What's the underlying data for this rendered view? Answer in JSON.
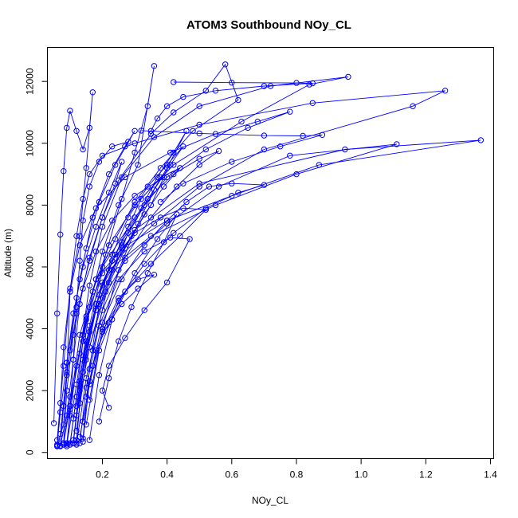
{
  "chart_data": {
    "type": "line",
    "title": "ATOM3 Southbound NOy_CL",
    "xlabel": "NOy_CL",
    "ylabel": "Altitude (m)",
    "xlim": [
      0.03,
      1.41
    ],
    "ylim": [
      -200,
      13100
    ],
    "xticks": [
      0.2,
      0.4,
      0.6,
      0.8,
      1.0,
      1.2,
      1.4
    ],
    "xtick_labels": [
      "0.2",
      "0.4",
      "0.6",
      "0.8",
      "1.0",
      "1.2",
      "1.4"
    ],
    "yticks": [
      0,
      2000,
      4000,
      6000,
      8000,
      10000,
      12000
    ],
    "ytick_labels": [
      "0",
      "2000",
      "4000",
      "6000",
      "8000",
      "10000",
      "12000"
    ],
    "grid": false,
    "legend": "none",
    "color": "#0000ff",
    "series": [
      {
        "x": [
          0.06,
          0.08,
          0.09,
          0.1,
          0.12,
          0.14,
          0.16,
          0.2,
          0.3,
          0.5,
          0.85,
          1.26,
          1.16,
          0.7,
          0.5,
          0.36,
          0.2,
          0.15,
          0.12,
          0.1,
          0.09
        ],
        "y": [
          250,
          900,
          2500,
          5200,
          7000,
          8200,
          9000,
          9600,
          10000,
          10600,
          11300,
          11700,
          11200,
          9800,
          8600,
          7400,
          5800,
          4400,
          2800,
          1200,
          300
        ]
      },
      {
        "x": [
          0.08,
          0.1,
          0.13,
          0.18,
          0.26,
          0.4,
          0.6,
          0.87,
          1.37,
          0.95,
          0.5,
          0.3,
          0.2,
          0.15,
          0.13,
          0.12
        ],
        "y": [
          300,
          1500,
          3800,
          5600,
          6600,
          7500,
          8300,
          9300,
          10100,
          9800,
          8700,
          7200,
          5400,
          3600,
          1600,
          300
        ]
      },
      {
        "x": [
          0.09,
          0.12,
          0.15,
          0.22,
          0.35,
          0.55,
          0.8,
          1.11,
          0.78,
          0.56,
          0.4,
          0.27,
          0.18,
          0.14,
          0.11
        ],
        "y": [
          250,
          2200,
          4300,
          5900,
          7000,
          8000,
          9000,
          9970,
          9600,
          8600,
          7400,
          6200,
          4600,
          2600,
          400
        ]
      },
      {
        "x": [
          0.07,
          0.09,
          0.11,
          0.13,
          0.16,
          0.2,
          0.25,
          0.35,
          0.42,
          0.52,
          0.58,
          0.62,
          0.48,
          0.38,
          0.3,
          0.24,
          0.18,
          0.14,
          0.1,
          0.08
        ],
        "y": [
          220,
          1200,
          3000,
          4800,
          6300,
          7600,
          8800,
          10300,
          11000,
          11700,
          12550,
          11400,
          10400,
          9200,
          8100,
          6900,
          5600,
          3800,
          1800,
          250
        ]
      },
      {
        "x": [
          0.1,
          0.12,
          0.14,
          0.17,
          0.22,
          0.3,
          0.42,
          0.63,
          0.84,
          0.96,
          0.72,
          0.5,
          0.36,
          0.26,
          0.2,
          0.16,
          0.13
        ],
        "y": [
          300,
          1800,
          3600,
          5200,
          6700,
          8000,
          9300,
          10700,
          11900,
          12150,
          11850,
          11200,
          10200,
          8900,
          7300,
          5400,
          3200
        ]
      },
      {
        "x": [
          0.12,
          0.14,
          0.18,
          0.23,
          0.3,
          0.38,
          0.45,
          0.52,
          0.44,
          0.35,
          0.27,
          0.21,
          0.17,
          0.14
        ],
        "y": [
          400,
          2600,
          4800,
          6200,
          7100,
          7600,
          7900,
          7850,
          7000,
          6100,
          5200,
          4100,
          2800,
          1000
        ]
      },
      {
        "x": [
          0.05,
          0.06,
          0.07,
          0.08,
          0.09,
          0.1,
          0.12,
          0.14,
          0.16,
          0.17,
          0.15,
          0.13,
          0.1,
          0.08,
          0.06
        ],
        "y": [
          950,
          4500,
          7050,
          9100,
          10500,
          11050,
          10400,
          9800,
          10500,
          11650,
          9200,
          7000,
          5300,
          2800,
          400
        ]
      },
      {
        "x": [
          0.13,
          0.15,
          0.19,
          0.25,
          0.33,
          0.41,
          0.47,
          0.4,
          0.33,
          0.27,
          0.22,
          0.2,
          0.22
        ],
        "y": [
          300,
          2100,
          4100,
          5600,
          6500,
          6950,
          6900,
          5500,
          4600,
          3700,
          2800,
          2000,
          1450
        ]
      },
      {
        "x": [
          0.06,
          0.07,
          0.08,
          0.1,
          0.13,
          0.18,
          0.27,
          0.41,
          0.55,
          0.68,
          0.78,
          0.65,
          0.52,
          0.4,
          0.3,
          0.2,
          0.14,
          0.1
        ],
        "y": [
          200,
          1600,
          3400,
          5200,
          6700,
          7900,
          8900,
          9700,
          10300,
          10700,
          11020,
          10500,
          9800,
          8900,
          7600,
          6000,
          3800,
          1500
        ]
      },
      {
        "x": [
          0.14,
          0.16,
          0.2,
          0.26,
          0.33,
          0.4,
          0.46,
          0.53,
          0.6,
          0.7,
          0.62,
          0.52,
          0.42,
          0.33,
          0.25,
          0.19,
          0.15
        ],
        "y": [
          350,
          2300,
          4200,
          5600,
          6700,
          7500,
          8100,
          8600,
          8700,
          8650,
          8400,
          7900,
          7100,
          6100,
          4900,
          3300,
          900
        ]
      },
      {
        "x": [
          0.11,
          0.13,
          0.16,
          0.2,
          0.26,
          0.32,
          0.37,
          0.42,
          0.46,
          0.4,
          0.33,
          0.26,
          0.2,
          0.15,
          0.12
        ],
        "y": [
          300,
          2000,
          3900,
          5500,
          6800,
          7900,
          8900,
          9700,
          10400,
          9200,
          8000,
          6700,
          5000,
          3000,
          700
        ]
      },
      {
        "x": [
          0.12,
          0.15,
          0.2,
          0.27,
          0.35,
          0.43,
          0.5,
          0.56,
          0.5,
          0.42,
          0.34,
          0.28,
          0.22,
          0.17
        ],
        "y": [
          250,
          2400,
          4600,
          6300,
          7600,
          8600,
          9300,
          9750,
          9500,
          9000,
          8200,
          7100,
          5500,
          3300
        ]
      },
      {
        "x": [
          0.16,
          0.19,
          0.23,
          0.3,
          0.37,
          0.43,
          0.39,
          0.34,
          0.29,
          0.25,
          0.22,
          0.19
        ],
        "y": [
          400,
          2500,
          4300,
          5800,
          6900,
          7700,
          6800,
          5800,
          4700,
          3600,
          2400,
          1000
        ]
      },
      {
        "x": [
          0.07,
          0.08,
          0.1,
          0.12,
          0.15,
          0.19,
          0.24,
          0.3,
          0.27,
          0.22,
          0.17,
          0.13,
          0.09
        ],
        "y": [
          200,
          1500,
          3300,
          5000,
          6600,
          8100,
          9300,
          10400,
          9900,
          9000,
          7600,
          5600,
          2900
        ]
      },
      {
        "x": [
          0.13,
          0.16,
          0.2,
          0.25,
          0.31,
          0.36,
          0.31,
          0.26,
          0.22,
          0.18,
          0.15
        ],
        "y": [
          500,
          2200,
          3900,
          5000,
          5600,
          5750,
          5300,
          4800,
          4200,
          3300,
          1800
        ]
      },
      {
        "x": [
          0.09,
          0.1,
          0.11,
          0.12,
          0.13,
          0.14,
          0.16,
          0.19,
          0.23,
          0.28
        ],
        "y": [
          200,
          1400,
          3000,
          4700,
          6200,
          7500,
          8600,
          9400,
          9900,
          10050
        ]
      },
      {
        "x": [
          0.42,
          0.6,
          0.8,
          0.85,
          0.7,
          0.55,
          0.45,
          0.4,
          0.37,
          0.35
        ],
        "y": [
          11980,
          11960,
          11950,
          11940,
          11850,
          11700,
          11500,
          11200,
          10800,
          10400
        ]
      },
      {
        "x": [
          0.32,
          0.5,
          0.7,
          0.82,
          0.88,
          0.75,
          0.6,
          0.45,
          0.38
        ],
        "y": [
          10410,
          10320,
          10250,
          10240,
          10270,
          9900,
          9400,
          8700,
          8100
        ]
      },
      {
        "x": [
          0.11,
          0.13,
          0.16,
          0.2,
          0.25,
          0.31,
          0.36,
          0.34,
          0.3,
          0.26,
          0.21,
          0.16,
          0.12
        ],
        "y": [
          300,
          2300,
          4700,
          6500,
          8000,
          9300,
          12500,
          11200,
          9700,
          8200,
          6400,
          4100,
          1500
        ]
      },
      {
        "x": [
          0.1,
          0.12,
          0.15,
          0.19,
          0.24,
          0.28,
          0.32,
          0.38,
          0.44,
          0.39,
          0.33,
          0.27,
          0.21,
          0.16,
          0.12
        ],
        "y": [
          250,
          1800,
          3600,
          5100,
          6400,
          7300,
          8200,
          8900,
          9200,
          8600,
          7700,
          6600,
          5200,
          3400,
          1200
        ]
      },
      {
        "x": [
          0.08,
          0.09,
          0.11,
          0.14,
          0.18,
          0.23,
          0.3,
          0.39,
          0.35,
          0.29,
          0.23,
          0.18,
          0.14,
          0.11
        ],
        "y": [
          300,
          2000,
          3800,
          5300,
          6500,
          7500,
          8300,
          8900,
          8000,
          7000,
          5900,
          4600,
          3000,
          1100
        ]
      },
      {
        "x": [
          0.14,
          0.16,
          0.19,
          0.23,
          0.28,
          0.34,
          0.4,
          0.45,
          0.41,
          0.36,
          0.31,
          0.25,
          0.2,
          0.16
        ],
        "y": [
          450,
          2700,
          4800,
          6400,
          7600,
          8600,
          9300,
          9900,
          9300,
          8500,
          7400,
          5900,
          4000,
          1700
        ]
      },
      {
        "x": [
          0.06,
          0.07,
          0.09,
          0.11,
          0.14,
          0.18,
          0.22,
          0.26,
          0.24,
          0.2,
          0.16,
          0.12,
          0.09,
          0.07
        ],
        "y": [
          220,
          1300,
          2900,
          4500,
          6000,
          7300,
          8400,
          9400,
          8700,
          7600,
          6200,
          4500,
          2600,
          600
        ]
      }
    ]
  }
}
